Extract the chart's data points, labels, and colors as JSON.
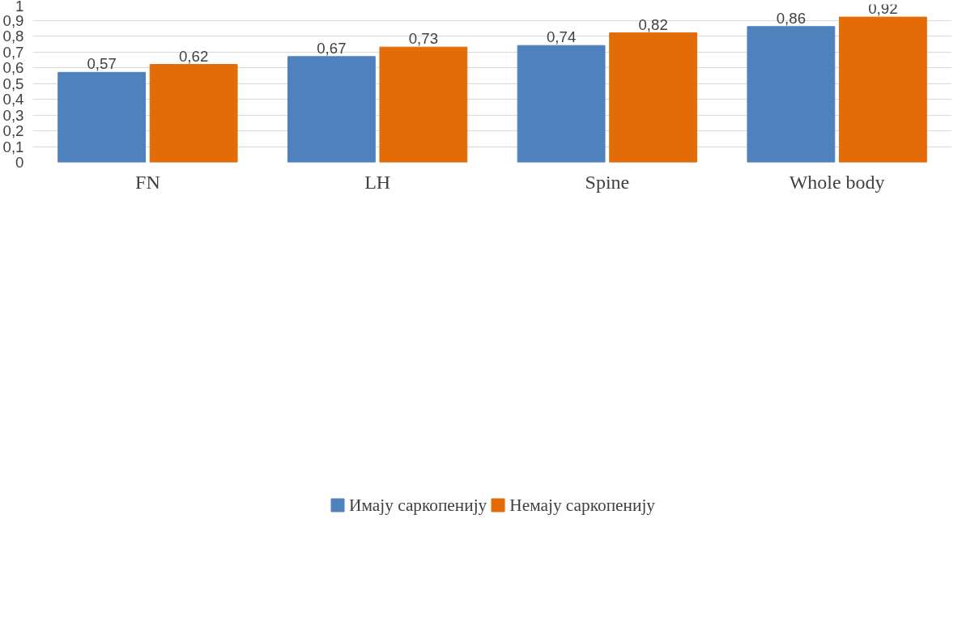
{
  "chart_data": {
    "type": "bar",
    "categories": [
      "FN",
      "LH",
      "Spine",
      "Whole body"
    ],
    "series": [
      {
        "name": "Имају саркопенију",
        "color": "#4f81bd",
        "values": [
          0.57,
          0.67,
          0.74,
          0.86
        ],
        "value_labels": [
          "0,57",
          "0,67",
          "0,74",
          "0,86"
        ]
      },
      {
        "name": "Немају саркопенију",
        "color": "#e36c09",
        "values": [
          0.62,
          0.73,
          0.82,
          0.92
        ],
        "value_labels": [
          "0,62",
          "0,73",
          "0,82",
          "0,92"
        ]
      }
    ],
    "ylim": [
      0,
      1
    ],
    "yticks": [
      0,
      {
        "value": 0.1,
        "label": "0,1"
      },
      {
        "value": 0.2,
        "label": "0,2"
      },
      {
        "value": 0.3,
        "label": "0,3"
      },
      {
        "value": 0.4,
        "label": "0,4"
      },
      {
        "value": 0.5,
        "label": "0,5"
      },
      {
        "value": 0.6,
        "label": "0,6"
      },
      {
        "value": 0.7,
        "label": "0,7"
      },
      {
        "value": 0.8,
        "label": "0,8"
      },
      {
        "value": 0.9,
        "label": "0,9"
      },
      1
    ],
    "grid": "y",
    "legend": "bottom"
  }
}
